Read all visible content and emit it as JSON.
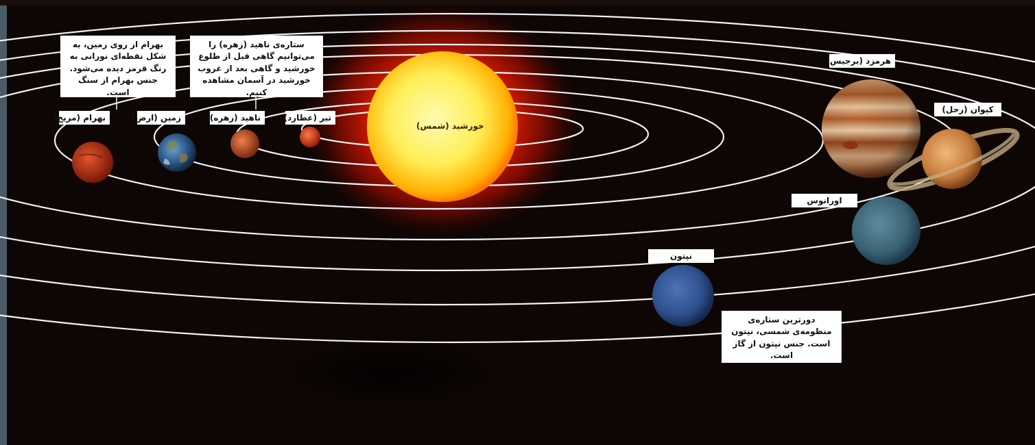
{
  "sun": {
    "label": "خورشید (شمس)"
  },
  "planets": [
    {
      "id": "mercury",
      "label": "تیر (عطارد)"
    },
    {
      "id": "venus",
      "label": "ناهید (زهره)"
    },
    {
      "id": "earth",
      "label": "زمین (ارض)"
    },
    {
      "id": "mars",
      "label": "بهرام (مریخ)"
    },
    {
      "id": "jupiter",
      "label": "هرمزد (برجیس)"
    },
    {
      "id": "saturn",
      "label": "کیوان (زحل)"
    },
    {
      "id": "uranus",
      "label": "اورانوس"
    },
    {
      "id": "neptune",
      "label": "نپتون"
    }
  ],
  "notes": {
    "mars": "بهرام از روی زمین، به شکل نقطه‌ای نورانی به رنگ قرمز دیده می‌شود. جنس بهرام از سنگ است.",
    "venus": "ستاره‌ی ناهید (زهره) را می‌توانیم گاهی قبل از طلوع خورشید و گاهی بعد از غروب خورشید در آسمان مشاهده کنیم.",
    "neptune": "دورترین ستاره‌ی منظومه‌ی شمسی، نپتون است. جنس نپتون از گاز است."
  },
  "colors": {
    "background": "#0e0604",
    "orbit": "#f2f2f2",
    "sun_core": "#fff27a",
    "sun_glow": "#ff2a00"
  }
}
